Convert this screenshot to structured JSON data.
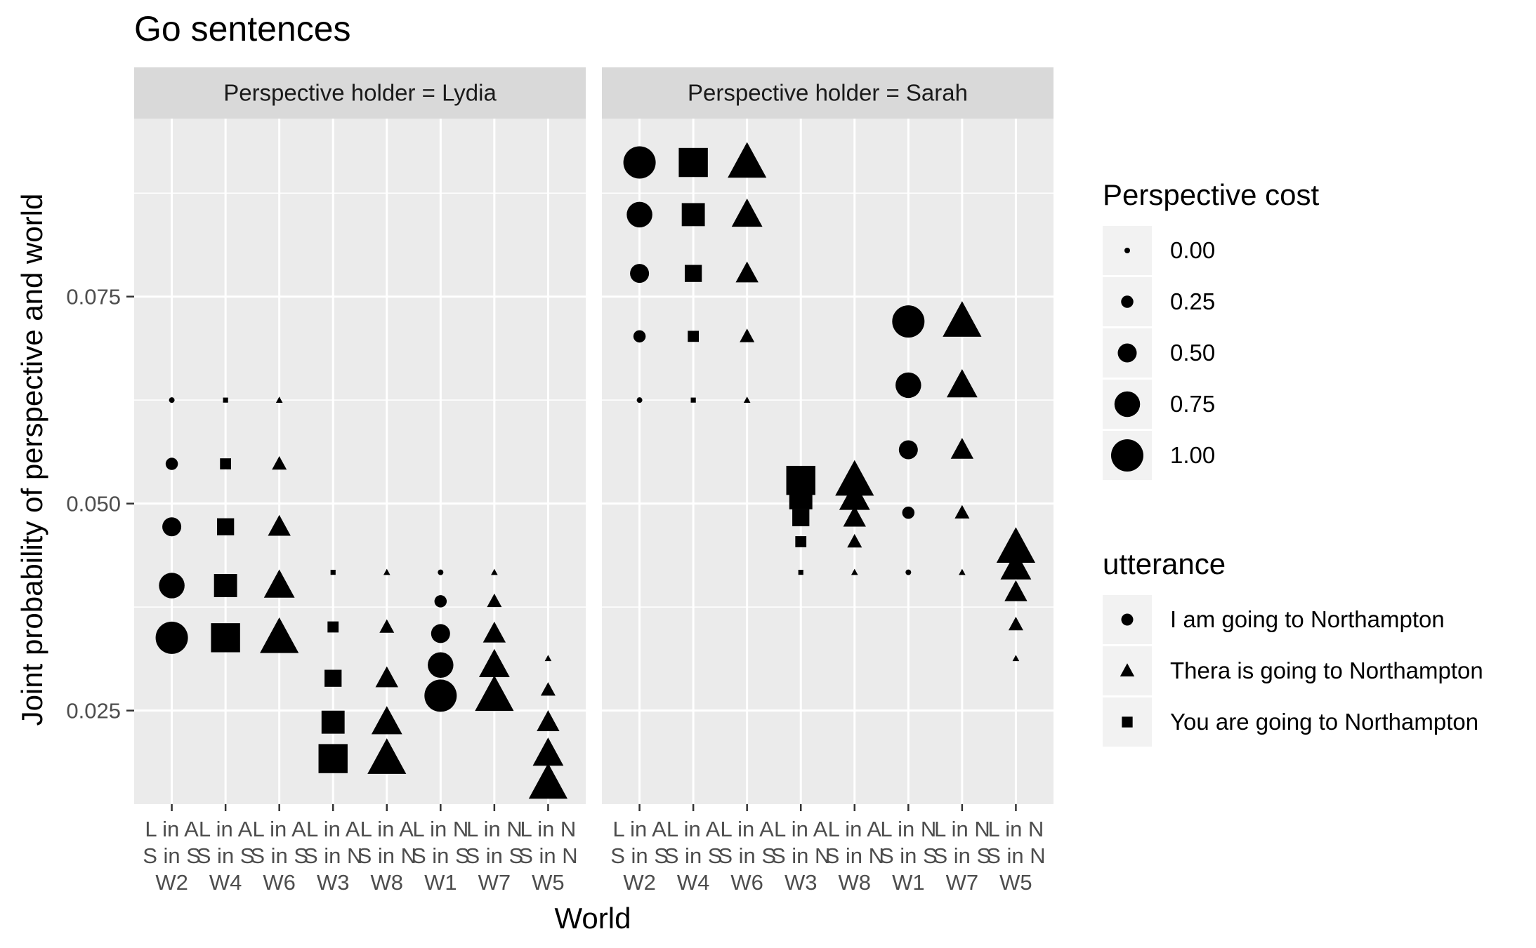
{
  "chart_data": {
    "type": "scatter",
    "title": "Go sentences",
    "xlabel": "World",
    "ylabel": "Joint probability of perspective and world",
    "ylim": [
      0.0137,
      0.0965
    ],
    "y_ticks": [
      "0.025",
      "0.050",
      "0.075"
    ],
    "grid": true,
    "categories": [
      "L in A\nS in S\nW2",
      "L in A\nS in S\nW4",
      "L in A\nS in S\nW6",
      "L in A\nS in N\nW3",
      "L in A\nS in N\nW8",
      "L in N\nS in S\nW1",
      "L in N\nS in S\nW7",
      "L in N\nS in N\nW5"
    ],
    "facets": [
      {
        "label": "Perspective holder = Lydia",
        "series": [
          {
            "category": "L in A\nS in S\nW2",
            "utterance": "I am going to Northampton",
            "points": [
              {
                "y": 0.0625,
                "cost": 0.0
              },
              {
                "y": 0.0548,
                "cost": 0.25
              },
              {
                "y": 0.0472,
                "cost": 0.5
              },
              {
                "y": 0.0401,
                "cost": 0.75
              },
              {
                "y": 0.0338,
                "cost": 1.0
              }
            ]
          },
          {
            "category": "L in A\nS in S\nW4",
            "utterance": "You are going to Northampton",
            "points": [
              {
                "y": 0.0625,
                "cost": 0.0
              },
              {
                "y": 0.0548,
                "cost": 0.25
              },
              {
                "y": 0.0472,
                "cost": 0.5
              },
              {
                "y": 0.0401,
                "cost": 0.75
              },
              {
                "y": 0.0338,
                "cost": 1.0
              }
            ]
          },
          {
            "category": "L in A\nS in S\nW6",
            "utterance": "Thera is going to Northampton",
            "points": [
              {
                "y": 0.0625,
                "cost": 0.0
              },
              {
                "y": 0.0548,
                "cost": 0.25
              },
              {
                "y": 0.0472,
                "cost": 0.5
              },
              {
                "y": 0.0401,
                "cost": 0.75
              },
              {
                "y": 0.0338,
                "cost": 1.0
              }
            ]
          },
          {
            "category": "L in A\nS in N\nW3",
            "utterance": "You are going to Northampton",
            "points": [
              {
                "y": 0.0417,
                "cost": 0.0
              },
              {
                "y": 0.0351,
                "cost": 0.25
              },
              {
                "y": 0.0289,
                "cost": 0.5
              },
              {
                "y": 0.0236,
                "cost": 0.75
              },
              {
                "y": 0.0192,
                "cost": 1.0
              }
            ]
          },
          {
            "category": "L in A\nS in N\nW8",
            "utterance": "Thera is going to Northampton",
            "points": [
              {
                "y": 0.0417,
                "cost": 0.0
              },
              {
                "y": 0.0351,
                "cost": 0.25
              },
              {
                "y": 0.0289,
                "cost": 0.5
              },
              {
                "y": 0.0236,
                "cost": 0.75
              },
              {
                "y": 0.0192,
                "cost": 1.0
              }
            ]
          },
          {
            "category": "L in N\nS in S\nW1",
            "utterance": "I am going to Northampton",
            "points": [
              {
                "y": 0.0417,
                "cost": 0.0
              },
              {
                "y": 0.0382,
                "cost": 0.25
              },
              {
                "y": 0.0343,
                "cost": 0.5
              },
              {
                "y": 0.0305,
                "cost": 0.75
              },
              {
                "y": 0.0268,
                "cost": 1.0
              }
            ]
          },
          {
            "category": "L in N\nS in S\nW7",
            "utterance": "Thera is going to Northampton",
            "points": [
              {
                "y": 0.0417,
                "cost": 0.0
              },
              {
                "y": 0.0382,
                "cost": 0.25
              },
              {
                "y": 0.0343,
                "cost": 0.5
              },
              {
                "y": 0.0305,
                "cost": 0.75
              },
              {
                "y": 0.0268,
                "cost": 1.0
              }
            ]
          },
          {
            "category": "L in N\nS in N\nW5",
            "utterance": "Thera is going to Northampton",
            "points": [
              {
                "y": 0.0313,
                "cost": 0.0
              },
              {
                "y": 0.0275,
                "cost": 0.25
              },
              {
                "y": 0.0236,
                "cost": 0.5
              },
              {
                "y": 0.0198,
                "cost": 0.75
              },
              {
                "y": 0.0162,
                "cost": 1.0
              }
            ]
          }
        ]
      },
      {
        "label": "Perspective holder = Sarah",
        "series": [
          {
            "category": "L in A\nS in S\nW2",
            "utterance": "I am going to Northampton",
            "points": [
              {
                "y": 0.0625,
                "cost": 0.0
              },
              {
                "y": 0.0702,
                "cost": 0.25
              },
              {
                "y": 0.0778,
                "cost": 0.5
              },
              {
                "y": 0.0849,
                "cost": 0.75
              },
              {
                "y": 0.0912,
                "cost": 1.0
              }
            ]
          },
          {
            "category": "L in A\nS in S\nW4",
            "utterance": "You are going to Northampton",
            "points": [
              {
                "y": 0.0625,
                "cost": 0.0
              },
              {
                "y": 0.0702,
                "cost": 0.25
              },
              {
                "y": 0.0778,
                "cost": 0.5
              },
              {
                "y": 0.0849,
                "cost": 0.75
              },
              {
                "y": 0.0912,
                "cost": 1.0
              }
            ]
          },
          {
            "category": "L in A\nS in S\nW6",
            "utterance": "Thera is going to Northampton",
            "points": [
              {
                "y": 0.0625,
                "cost": 0.0
              },
              {
                "y": 0.0702,
                "cost": 0.25
              },
              {
                "y": 0.0778,
                "cost": 0.5
              },
              {
                "y": 0.0849,
                "cost": 0.75
              },
              {
                "y": 0.0912,
                "cost": 1.0
              }
            ]
          },
          {
            "category": "L in A\nS in N\nW3",
            "utterance": "You are going to Northampton",
            "points": [
              {
                "y": 0.0417,
                "cost": 0.0
              },
              {
                "y": 0.0454,
                "cost": 0.25
              },
              {
                "y": 0.0483,
                "cost": 0.5
              },
              {
                "y": 0.0507,
                "cost": 0.75
              },
              {
                "y": 0.0528,
                "cost": 1.0
              }
            ]
          },
          {
            "category": "L in A\nS in N\nW8",
            "utterance": "Thera is going to Northampton",
            "points": [
              {
                "y": 0.0417,
                "cost": 0.0
              },
              {
                "y": 0.0454,
                "cost": 0.25
              },
              {
                "y": 0.0483,
                "cost": 0.5
              },
              {
                "y": 0.0507,
                "cost": 0.75
              },
              {
                "y": 0.0528,
                "cost": 1.0
              }
            ]
          },
          {
            "category": "L in N\nS in S\nW1",
            "utterance": "I am going to Northampton",
            "points": [
              {
                "y": 0.0417,
                "cost": 0.0
              },
              {
                "y": 0.0489,
                "cost": 0.25
              },
              {
                "y": 0.0565,
                "cost": 0.5
              },
              {
                "y": 0.0643,
                "cost": 0.75
              },
              {
                "y": 0.072,
                "cost": 1.0
              }
            ]
          },
          {
            "category": "L in N\nS in S\nW7",
            "utterance": "Thera is going to Northampton",
            "points": [
              {
                "y": 0.0417,
                "cost": 0.0
              },
              {
                "y": 0.0489,
                "cost": 0.25
              },
              {
                "y": 0.0565,
                "cost": 0.5
              },
              {
                "y": 0.0643,
                "cost": 0.75
              },
              {
                "y": 0.072,
                "cost": 1.0
              }
            ]
          },
          {
            "category": "L in N\nS in N\nW5",
            "utterance": "Thera is going to Northampton",
            "points": [
              {
                "y": 0.0313,
                "cost": 0.0
              },
              {
                "y": 0.0354,
                "cost": 0.25
              },
              {
                "y": 0.0393,
                "cost": 0.5
              },
              {
                "y": 0.0423,
                "cost": 0.75
              },
              {
                "y": 0.0447,
                "cost": 1.0
              }
            ]
          }
        ]
      }
    ],
    "legend": {
      "size": {
        "title": "Perspective cost",
        "labels": [
          "0.00",
          "0.25",
          "0.50",
          "0.75",
          "1.00"
        ],
        "values": [
          0,
          0.25,
          0.5,
          0.75,
          1.0
        ]
      },
      "shape": {
        "title": "utterance",
        "entries": [
          {
            "label": "I am going to Northampton",
            "shape": "circle"
          },
          {
            "label": "Thera is going to Northampton",
            "shape": "triangle"
          },
          {
            "label": "You are going to Northampton",
            "shape": "square"
          }
        ]
      },
      "placement": "right"
    },
    "colors": {
      "panel_bg": "#ebebeb",
      "strip_bg": "#d9d9d9",
      "grid": "#ffffff",
      "points": "#000000",
      "legend_key_bg": "#f2f2f2"
    }
  }
}
